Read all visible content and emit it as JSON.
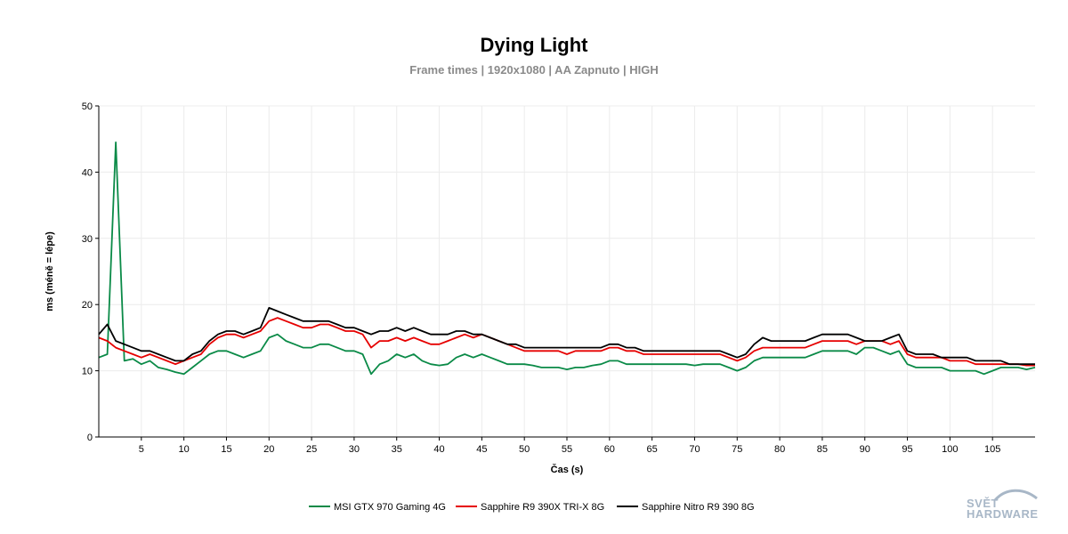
{
  "chart_data": {
    "type": "line",
    "title": "Dying Light",
    "subtitle": "Frame times | 1920x1080 | AA Zapnuto | HIGH",
    "xlabel": "Čas (s)",
    "ylabel": "ms (méně = lépe)",
    "xlim": [
      0,
      110
    ],
    "ylim": [
      0,
      50
    ],
    "xticks": [
      5,
      10,
      15,
      20,
      25,
      30,
      35,
      40,
      45,
      50,
      55,
      60,
      65,
      70,
      75,
      80,
      85,
      90,
      95,
      100,
      105
    ],
    "yticks": [
      0,
      10,
      20,
      30,
      40,
      50
    ],
    "grid": true,
    "legend_position": "bottom-center",
    "series": [
      {
        "name": "MSI GTX 970 Gaming 4G",
        "color": "#0a8a47",
        "x": [
          0,
          1,
          2,
          3,
          4,
          5,
          6,
          7,
          8,
          9,
          10,
          11,
          12,
          13,
          14,
          15,
          16,
          17,
          18,
          19,
          20,
          21,
          22,
          23,
          24,
          25,
          26,
          27,
          28,
          29,
          30,
          31,
          32,
          33,
          34,
          35,
          36,
          37,
          38,
          39,
          40,
          41,
          42,
          43,
          44,
          45,
          46,
          47,
          48,
          49,
          50,
          51,
          52,
          53,
          54,
          55,
          56,
          57,
          58,
          59,
          60,
          61,
          62,
          63,
          64,
          65,
          66,
          67,
          68,
          69,
          70,
          71,
          72,
          73,
          74,
          75,
          76,
          77,
          78,
          79,
          80,
          81,
          82,
          83,
          84,
          85,
          86,
          87,
          88,
          89,
          90,
          91,
          92,
          93,
          94,
          95,
          96,
          97,
          98,
          99,
          100,
          101,
          102,
          103,
          104,
          105,
          106,
          107,
          108,
          109,
          110
        ],
        "y": [
          12.0,
          12.5,
          44.5,
          11.5,
          11.8,
          11.0,
          11.5,
          10.5,
          10.2,
          9.8,
          9.5,
          10.5,
          11.5,
          12.5,
          13.0,
          13.0,
          12.5,
          12.0,
          12.5,
          13.0,
          15.0,
          15.5,
          14.5,
          14.0,
          13.5,
          13.5,
          14.0,
          14.0,
          13.5,
          13.0,
          13.0,
          12.5,
          9.5,
          11.0,
          11.5,
          12.5,
          12.0,
          12.5,
          11.5,
          11.0,
          10.8,
          11.0,
          12.0,
          12.5,
          12.0,
          12.5,
          12.0,
          11.5,
          11.0,
          11.0,
          11.0,
          10.8,
          10.5,
          10.5,
          10.5,
          10.2,
          10.5,
          10.5,
          10.8,
          11.0,
          11.5,
          11.5,
          11.0,
          11.0,
          11.0,
          11.0,
          11.0,
          11.0,
          11.0,
          11.0,
          10.8,
          11.0,
          11.0,
          11.0,
          10.5,
          10.0,
          10.5,
          11.5,
          12.0,
          12.0,
          12.0,
          12.0,
          12.0,
          12.0,
          12.5,
          13.0,
          13.0,
          13.0,
          13.0,
          12.5,
          13.5,
          13.5,
          13.0,
          12.5,
          13.0,
          11.0,
          10.5,
          10.5,
          10.5,
          10.5,
          10.0,
          10.0,
          10.0,
          10.0,
          9.5,
          10.0,
          10.5,
          10.5,
          10.5,
          10.2,
          10.5
        ]
      },
      {
        "name": "Sapphire R9 390X TRI-X 8G",
        "color": "#e60000",
        "x": [
          0,
          1,
          2,
          3,
          4,
          5,
          6,
          7,
          8,
          9,
          10,
          11,
          12,
          13,
          14,
          15,
          16,
          17,
          18,
          19,
          20,
          21,
          22,
          23,
          24,
          25,
          26,
          27,
          28,
          29,
          30,
          31,
          32,
          33,
          34,
          35,
          36,
          37,
          38,
          39,
          40,
          41,
          42,
          43,
          44,
          45,
          46,
          47,
          48,
          49,
          50,
          51,
          52,
          53,
          54,
          55,
          56,
          57,
          58,
          59,
          60,
          61,
          62,
          63,
          64,
          65,
          66,
          67,
          68,
          69,
          70,
          71,
          72,
          73,
          74,
          75,
          76,
          77,
          78,
          79,
          80,
          81,
          82,
          83,
          84,
          85,
          86,
          87,
          88,
          89,
          90,
          91,
          92,
          93,
          94,
          95,
          96,
          97,
          98,
          99,
          100,
          101,
          102,
          103,
          104,
          105,
          106,
          107,
          108,
          109,
          110
        ],
        "y": [
          15.0,
          14.5,
          13.5,
          13.0,
          12.5,
          12.0,
          12.5,
          12.0,
          11.5,
          11.0,
          11.5,
          12.0,
          12.5,
          14.0,
          15.0,
          15.5,
          15.5,
          15.0,
          15.5,
          16.0,
          17.5,
          18.0,
          17.5,
          17.0,
          16.5,
          16.5,
          17.0,
          17.0,
          16.5,
          16.0,
          16.0,
          15.5,
          13.5,
          14.5,
          14.5,
          15.0,
          14.5,
          15.0,
          14.5,
          14.0,
          14.0,
          14.5,
          15.0,
          15.5,
          15.0,
          15.5,
          15.0,
          14.5,
          14.0,
          13.5,
          13.0,
          13.0,
          13.0,
          13.0,
          13.0,
          12.5,
          13.0,
          13.0,
          13.0,
          13.0,
          13.5,
          13.5,
          13.0,
          13.0,
          12.5,
          12.5,
          12.5,
          12.5,
          12.5,
          12.5,
          12.5,
          12.5,
          12.5,
          12.5,
          12.0,
          11.5,
          12.0,
          13.0,
          13.5,
          13.5,
          13.5,
          13.5,
          13.5,
          13.5,
          14.0,
          14.5,
          14.5,
          14.5,
          14.5,
          14.0,
          14.5,
          14.5,
          14.5,
          14.0,
          14.5,
          12.5,
          12.0,
          12.0,
          12.0,
          12.0,
          11.5,
          11.5,
          11.5,
          11.0,
          11.0,
          11.0,
          11.0,
          11.0,
          11.0,
          10.8,
          10.8
        ]
      },
      {
        "name": "Sapphire Nitro R9 390 8G",
        "color": "#000000",
        "x": [
          0,
          1,
          2,
          3,
          4,
          5,
          6,
          7,
          8,
          9,
          10,
          11,
          12,
          13,
          14,
          15,
          16,
          17,
          18,
          19,
          20,
          21,
          22,
          23,
          24,
          25,
          26,
          27,
          28,
          29,
          30,
          31,
          32,
          33,
          34,
          35,
          36,
          37,
          38,
          39,
          40,
          41,
          42,
          43,
          44,
          45,
          46,
          47,
          48,
          49,
          50,
          51,
          52,
          53,
          54,
          55,
          56,
          57,
          58,
          59,
          60,
          61,
          62,
          63,
          64,
          65,
          66,
          67,
          68,
          69,
          70,
          71,
          72,
          73,
          74,
          75,
          76,
          77,
          78,
          79,
          80,
          81,
          82,
          83,
          84,
          85,
          86,
          87,
          88,
          89,
          90,
          91,
          92,
          93,
          94,
          95,
          96,
          97,
          98,
          99,
          100,
          101,
          102,
          103,
          104,
          105,
          106,
          107,
          108,
          109,
          110
        ],
        "y": [
          15.5,
          17.0,
          14.5,
          14.0,
          13.5,
          13.0,
          13.0,
          12.5,
          12.0,
          11.5,
          11.5,
          12.5,
          13.0,
          14.5,
          15.5,
          16.0,
          16.0,
          15.5,
          16.0,
          16.5,
          19.5,
          19.0,
          18.5,
          18.0,
          17.5,
          17.5,
          17.5,
          17.5,
          17.0,
          16.5,
          16.5,
          16.0,
          15.5,
          16.0,
          16.0,
          16.5,
          16.0,
          16.5,
          16.0,
          15.5,
          15.5,
          15.5,
          16.0,
          16.0,
          15.5,
          15.5,
          15.0,
          14.5,
          14.0,
          14.0,
          13.5,
          13.5,
          13.5,
          13.5,
          13.5,
          13.5,
          13.5,
          13.5,
          13.5,
          13.5,
          14.0,
          14.0,
          13.5,
          13.5,
          13.0,
          13.0,
          13.0,
          13.0,
          13.0,
          13.0,
          13.0,
          13.0,
          13.0,
          13.0,
          12.5,
          12.0,
          12.5,
          14.0,
          15.0,
          14.5,
          14.5,
          14.5,
          14.5,
          14.5,
          15.0,
          15.5,
          15.5,
          15.5,
          15.5,
          15.0,
          14.5,
          14.5,
          14.5,
          15.0,
          15.5,
          13.0,
          12.5,
          12.5,
          12.5,
          12.0,
          12.0,
          12.0,
          12.0,
          11.5,
          11.5,
          11.5,
          11.5,
          11.0,
          11.0,
          11.0,
          11.0
        ]
      }
    ]
  },
  "watermark": {
    "line1": "SVĚT",
    "line2": "HARDWARE"
  }
}
